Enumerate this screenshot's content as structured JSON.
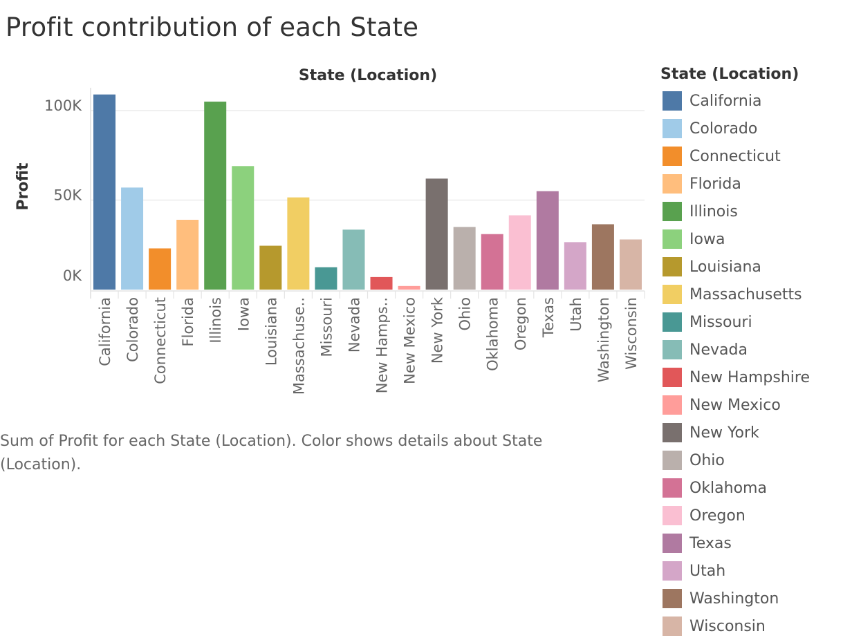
{
  "title": "Profit contribution of each State",
  "caption": "Sum of Profit for each State (Location).  Color shows details about State (Location).",
  "legend": {
    "title": "State (Location)"
  },
  "chart_data": {
    "type": "bar",
    "title": "Profit contribution of each State",
    "xlabel": "State (Location)",
    "ylabel": "Profit",
    "ylim": [
      0,
      110000
    ],
    "yticks": [
      {
        "value": 0,
        "label": "0K"
      },
      {
        "value": 50000,
        "label": "50K"
      },
      {
        "value": 100000,
        "label": "100K"
      }
    ],
    "grid": true,
    "legend_position": "right",
    "categories": [
      "California",
      "Colorado",
      "Connecticut",
      "Florida",
      "Illinois",
      "Iowa",
      "Louisiana",
      "Massachusetts",
      "Missouri",
      "Nevada",
      "New Hampshire",
      "New Mexico",
      "New York",
      "Ohio",
      "Oklahoma",
      "Oregon",
      "Texas",
      "Utah",
      "Washington",
      "Wisconsin"
    ],
    "tick_labels": [
      "California",
      "Colorado",
      "Connecticut",
      "Florida",
      "Illinois",
      "Iowa",
      "Louisiana",
      "Massachuse..",
      "Missouri",
      "Nevada",
      "New Hamps..",
      "New Mexico",
      "New York",
      "Ohio",
      "Oklahoma",
      "Oregon",
      "Texas",
      "Utah",
      "Washington",
      "Wisconsin"
    ],
    "values": [
      109000,
      57000,
      23000,
      39000,
      105000,
      69000,
      24500,
      51500,
      12500,
      33500,
      7000,
      2000,
      62000,
      35000,
      31000,
      41500,
      55000,
      26500,
      36500,
      28000
    ],
    "colors": [
      "#4e79a7",
      "#a0cbe8",
      "#f28e2b",
      "#ffbe7d",
      "#59a14f",
      "#8cd17d",
      "#b6992d",
      "#f1ce63",
      "#499894",
      "#86bcb6",
      "#e15759",
      "#ff9d9a",
      "#79706e",
      "#bab0ac",
      "#d37295",
      "#fabfd2",
      "#b07aa1",
      "#d4a6c8",
      "#9d7660",
      "#d7b5a6"
    ]
  }
}
